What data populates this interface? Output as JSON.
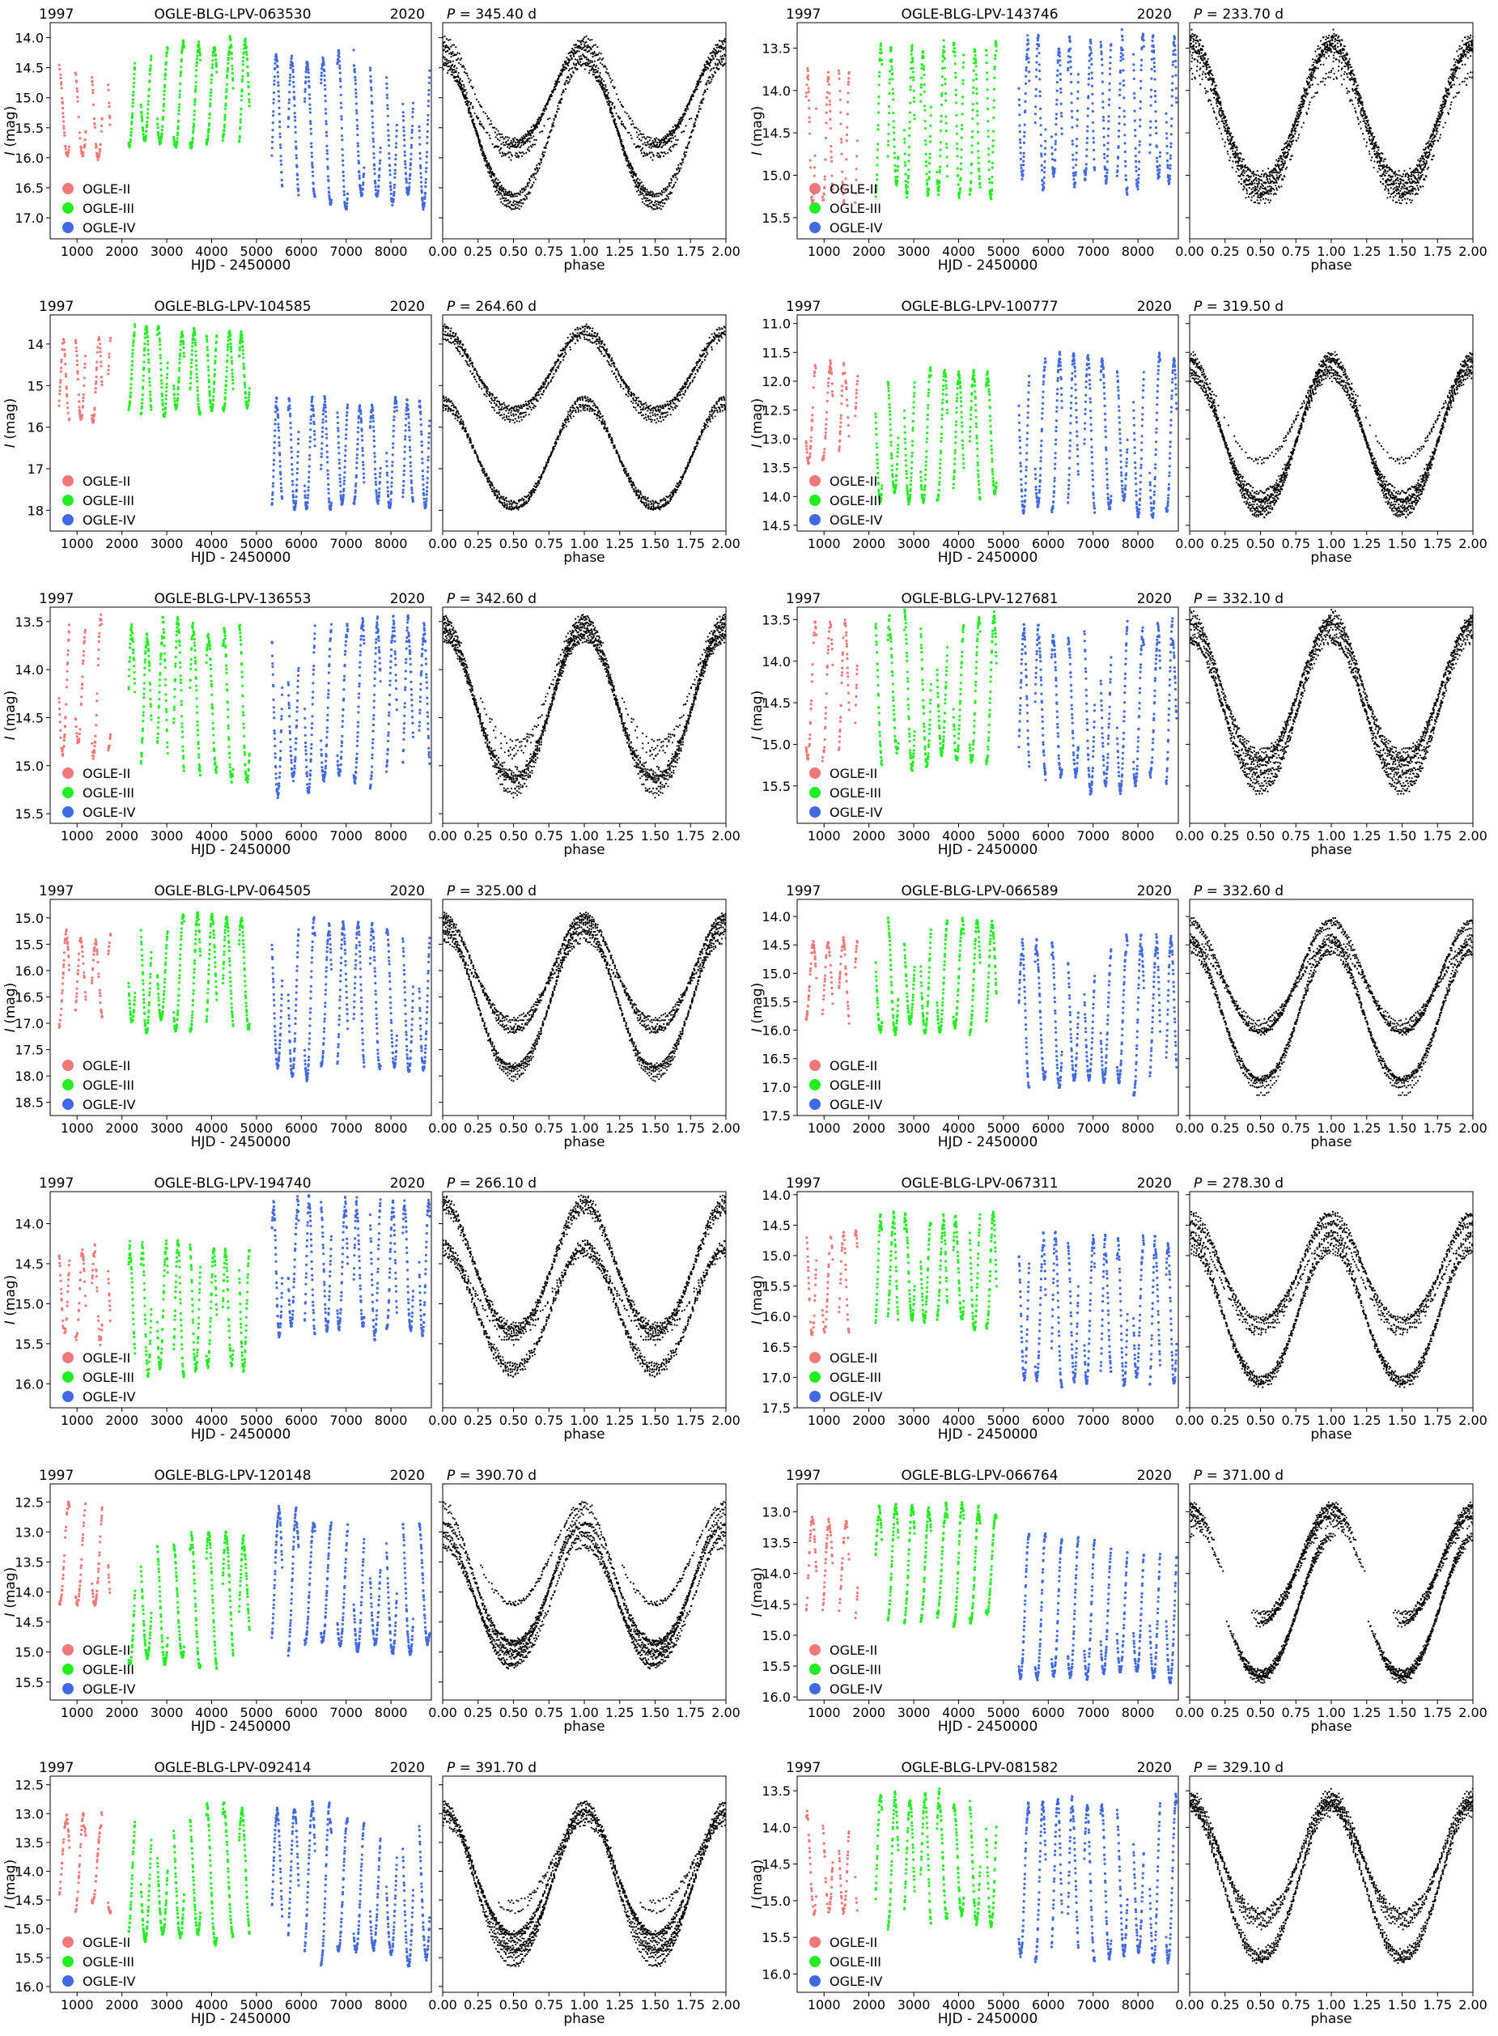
{
  "figure": {
    "lc_xlabel": "HJD - 2450000",
    "lc_ylabel_text": "I",
    "lc_ylabel_unit": " (mag)",
    "ph_xlabel": "phase",
    "year_start": "1997",
    "year_end": "2020",
    "period_symbol": "P",
    "period_prefix": " = ",
    "period_suffix": " d",
    "legend": [
      "OGLE-II",
      "OGLE-III",
      "OGLE-IV"
    ],
    "colors": {
      "OGLE-II": "#f07878",
      "OGLE-III": "#22ee22",
      "OGLE-IV": "#4169e1",
      "phase": "#000000"
    },
    "lc_x_ticks": [
      "1000",
      "2000",
      "3000",
      "4000",
      "5000",
      "6000",
      "7000",
      "8000"
    ],
    "ph_x_ticks": [
      "0.00",
      "0.25",
      "0.50",
      "0.75",
      "1.00",
      "1.25",
      "1.50",
      "1.75",
      "2.00"
    ]
  },
  "chart_data": [
    {
      "type": "scatter",
      "name": "OGLE-BLG-LPV-063530",
      "period": "345.40",
      "xlabel": "HJD - 2450000",
      "ylabel": "I (mag)",
      "xlim": [
        400,
        8900
      ],
      "ylim": [
        17.35,
        13.75
      ],
      "y_ticks": [
        "14.0",
        "14.5",
        "15.0",
        "15.5",
        "16.0",
        "16.5",
        "17.0"
      ],
      "variability": {
        "bright": 14.0,
        "faint": 17.2,
        "gap_start": 4950,
        "gap_end": 5200,
        "amp_II": 1.9,
        "amp_III": 2.0,
        "amp_IV": 2.9,
        "mean_II": 15.3,
        "mean_III": 15.0,
        "mean_IV": 15.6
      },
      "phase_xlim": [
        0,
        2
      ]
    },
    {
      "type": "scatter",
      "name": "OGLE-BLG-LPV-143746",
      "period": "233.70",
      "xlabel": "HJD - 2450000",
      "ylabel": "I (mag)",
      "xlim": [
        400,
        8900
      ],
      "ylim": [
        15.75,
        13.2
      ],
      "y_ticks": [
        "13.5",
        "14.0",
        "14.5",
        "15.0",
        "15.5"
      ],
      "variability": {
        "bright": 13.3,
        "faint": 15.6,
        "mean_II": 14.6,
        "mean_III": 14.4,
        "mean_IV": 14.3,
        "amp_II": 1.8,
        "amp_III": 2.0,
        "amp_IV": 2.0
      },
      "phase_xlim": [
        0,
        2
      ]
    },
    {
      "type": "scatter",
      "name": "OGLE-BLG-LPV-104585",
      "period": "264.60",
      "xlabel": "HJD - 2450000",
      "ylabel": "I (mag)",
      "xlim": [
        400,
        8900
      ],
      "ylim": [
        18.5,
        13.3
      ],
      "y_ticks": [
        "14",
        "15",
        "16",
        "17",
        "18"
      ],
      "variability": {
        "bright": 13.6,
        "faint": 18.3,
        "mean_II": 14.9,
        "mean_III": 14.7,
        "mean_IV": 16.7,
        "amp_II": 2.3,
        "amp_III": 2.4,
        "amp_IV": 2.9
      },
      "phase_xlim": [
        0,
        2
      ]
    },
    {
      "type": "scatter",
      "name": "OGLE-BLG-LPV-100777",
      "period": "319.50",
      "xlabel": "HJD - 2450000",
      "ylabel": "I (mag)",
      "xlim": [
        400,
        8900
      ],
      "ylim": [
        14.6,
        10.85
      ],
      "y_ticks": [
        "11.0",
        "11.5",
        "12.0",
        "12.5",
        "13.0",
        "13.5",
        "14.0",
        "14.5"
      ],
      "variability": {
        "bright": 11.1,
        "faint": 14.5,
        "mean_II": 12.6,
        "mean_III": 13.0,
        "mean_IV": 13.0,
        "amp_II": 2.0,
        "amp_III": 2.6,
        "amp_IV": 3.0
      },
      "phase_xlim": [
        0,
        2
      ]
    },
    {
      "type": "scatter",
      "name": "OGLE-BLG-LPV-136553",
      "period": "342.60",
      "xlabel": "HJD - 2450000",
      "ylabel": "I (mag)",
      "xlim": [
        400,
        8900
      ],
      "ylim": [
        15.6,
        13.35
      ],
      "y_ticks": [
        "13.5",
        "14.0",
        "14.5",
        "15.0",
        "15.5"
      ],
      "variability": {
        "bright": 13.4,
        "faint": 15.5,
        "mean_II": 14.2,
        "mean_III": 14.4,
        "mean_IV": 14.4,
        "amp_II": 1.6,
        "amp_III": 1.9,
        "amp_IV": 2.0
      },
      "phase_xlim": [
        0,
        2
      ]
    },
    {
      "type": "scatter",
      "name": "OGLE-BLG-LPV-127681",
      "period": "332.10",
      "xlabel": "HJD - 2450000",
      "ylabel": "I (mag)",
      "xlim": [
        400,
        8900
      ],
      "ylim": [
        15.95,
        13.35
      ],
      "y_ticks": [
        "13.5",
        "14.0",
        "14.5",
        "15.0",
        "15.5"
      ],
      "variability": {
        "bright": 13.5,
        "faint": 15.8,
        "mean_II": 14.4,
        "mean_III": 14.4,
        "mean_IV": 14.6,
        "amp_II": 1.8,
        "amp_III": 2.0,
        "amp_IV": 2.2
      },
      "phase_xlim": [
        0,
        2
      ]
    },
    {
      "type": "scatter",
      "name": "OGLE-BLG-LPV-064505",
      "period": "325.00",
      "xlabel": "HJD - 2450000",
      "ylabel": "I (mag)",
      "xlim": [
        400,
        8900
      ],
      "ylim": [
        18.75,
        14.65
      ],
      "y_ticks": [
        "15.0",
        "15.5",
        "16.0",
        "16.5",
        "17.0",
        "17.5",
        "18.0",
        "18.5"
      ],
      "variability": {
        "bright": 14.9,
        "faint": 18.6,
        "mean_II": 16.2,
        "mean_III": 16.1,
        "mean_IV": 16.6,
        "amp_II": 1.9,
        "amp_III": 2.4,
        "amp_IV": 3.4
      },
      "phase_xlim": [
        0,
        2
      ]
    },
    {
      "type": "scatter",
      "name": "OGLE-BLG-LPV-066589",
      "period": "332.60",
      "xlabel": "HJD - 2450000",
      "ylabel": "I (mag)",
      "xlim": [
        400,
        8900
      ],
      "ylim": [
        17.5,
        13.7
      ],
      "y_ticks": [
        "14.0",
        "14.5",
        "15.0",
        "15.5",
        "16.0",
        "16.5",
        "17.0",
        "17.5"
      ],
      "variability": {
        "bright": 13.9,
        "faint": 17.4,
        "mean_II": 15.2,
        "mean_III": 15.1,
        "mean_IV": 15.8,
        "amp_II": 1.8,
        "amp_III": 2.2,
        "amp_IV": 3.0
      },
      "phase_xlim": [
        0,
        2
      ]
    },
    {
      "type": "scatter",
      "name": "OGLE-BLG-LPV-194740",
      "period": "266.10",
      "xlabel": "HJD - 2450000",
      "ylabel": "I (mag)",
      "xlim": [
        400,
        8900
      ],
      "ylim": [
        16.3,
        13.6
      ],
      "y_ticks": [
        "14.0",
        "14.5",
        "15.0",
        "15.5",
        "16.0"
      ],
      "variability": {
        "bright": 13.7,
        "faint": 16.2,
        "mean_II": 14.9,
        "mean_III": 15.1,
        "mean_IV": 14.6,
        "amp_II": 1.4,
        "amp_III": 1.8,
        "amp_IV": 1.9
      },
      "phase_xlim": [
        0,
        2
      ]
    },
    {
      "type": "scatter",
      "name": "OGLE-BLG-LPV-067311",
      "period": "278.30",
      "xlabel": "HJD - 2450000",
      "ylabel": "I (mag)",
      "xlim": [
        400,
        8900
      ],
      "ylim": [
        17.5,
        13.95
      ],
      "y_ticks": [
        "14.0",
        "14.5",
        "15.0",
        "15.5",
        "16.0",
        "16.5",
        "17.0",
        "17.5"
      ],
      "variability": {
        "bright": 14.1,
        "faint": 17.4,
        "mean_II": 15.5,
        "mean_III": 15.3,
        "mean_IV": 16.0,
        "amp_II": 1.9,
        "amp_III": 2.1,
        "amp_IV": 2.8
      },
      "phase_xlim": [
        0,
        2
      ]
    },
    {
      "type": "scatter",
      "name": "OGLE-BLG-LPV-120148",
      "period": "390.70",
      "xlabel": "HJD - 2450000",
      "ylabel": "I (mag)",
      "xlim": [
        400,
        8900
      ],
      "ylim": [
        15.8,
        12.2
      ],
      "y_ticks": [
        "12.5",
        "13.0",
        "13.5",
        "14.0",
        "14.5",
        "15.0",
        "15.5"
      ],
      "variability": {
        "bright": 12.4,
        "faint": 15.7,
        "mean_II": 13.4,
        "mean_III": 14.2,
        "mean_IV": 13.9,
        "amp_II": 2.0,
        "amp_III": 2.4,
        "amp_IV": 2.6
      },
      "phase_xlim": [
        0,
        2
      ]
    },
    {
      "type": "scatter",
      "name": "OGLE-BLG-LPV-066764",
      "period": "371.00",
      "xlabel": "HJD - 2450000",
      "ylabel": "I (mag)",
      "xlim": [
        400,
        8900
      ],
      "ylim": [
        16.05,
        12.55
      ],
      "y_ticks": [
        "13.0",
        "13.5",
        "14.0",
        "14.5",
        "15.0",
        "15.5",
        "16.0"
      ],
      "variability": {
        "bright": 12.7,
        "faint": 15.9,
        "mean_II": 14.0,
        "mean_III": 13.9,
        "mean_IV": 14.6,
        "amp_II": 1.9,
        "amp_III": 2.1,
        "amp_IV": 2.6
      },
      "phase_xlim": [
        0,
        2
      ]
    },
    {
      "type": "scatter",
      "name": "OGLE-BLG-LPV-092414",
      "period": "391.70",
      "xlabel": "HJD - 2450000",
      "ylabel": "I (mag)",
      "xlim": [
        400,
        8900
      ],
      "ylim": [
        16.1,
        12.35
      ],
      "y_ticks": [
        "12.5",
        "13.0",
        "13.5",
        "14.0",
        "14.5",
        "15.0",
        "15.5",
        "16.0"
      ],
      "variability": {
        "bright": 12.5,
        "faint": 16.0,
        "mean_II": 13.9,
        "mean_III": 14.1,
        "mean_IV": 14.3,
        "amp_II": 1.9,
        "amp_III": 2.6,
        "amp_IV": 3.0
      },
      "phase_xlim": [
        0,
        2
      ]
    },
    {
      "type": "scatter",
      "name": "OGLE-BLG-LPV-081582",
      "period": "329.10",
      "xlabel": "HJD - 2450000",
      "ylabel": "I (mag)",
      "xlim": [
        400,
        8900
      ],
      "ylim": [
        16.25,
        13.3
      ],
      "y_ticks": [
        "13.5",
        "14.0",
        "14.5",
        "15.0",
        "15.5",
        "16.0"
      ],
      "variability": {
        "bright": 13.5,
        "faint": 16.1,
        "mean_II": 14.5,
        "mean_III": 14.5,
        "mean_IV": 14.8,
        "amp_II": 1.5,
        "amp_III": 2.0,
        "amp_IV": 2.5
      },
      "phase_xlim": [
        0,
        2
      ]
    }
  ]
}
